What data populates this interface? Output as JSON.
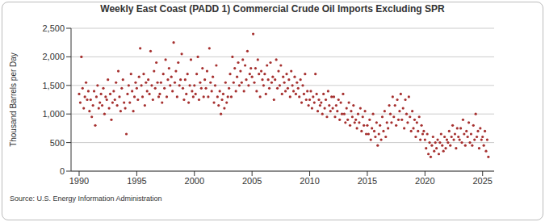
{
  "chart_data": {
    "type": "scatter",
    "title": "Weekly East Coast (PADD 1) Commercial Crude Oil Imports Excluding SPR",
    "y_label": "Thousand Barrels per Day",
    "source": "Source: U.S. Energy Information Administration",
    "color": "#a6302f",
    "marker": "circle",
    "grid": true,
    "xlim": [
      1989.3,
      2026
    ],
    "xticks": [
      1990,
      1995,
      2000,
      2005,
      2010,
      2015,
      2020,
      2025
    ],
    "ylim": [
      0,
      2500
    ],
    "yticks": [
      0,
      500,
      {
        "value": 1000,
        "label": "1,000"
      },
      {
        "value": 1500,
        "label": "1,500"
      },
      {
        "value": 2000,
        "label": "2,000"
      },
      {
        "value": 2500,
        "label": "2,500"
      }
    ],
    "x": [
      1990.0,
      1990.1,
      1990.2,
      1990.3,
      1990.4,
      1990.5,
      1990.6,
      1990.7,
      1990.8,
      1990.9,
      1991.0,
      1991.1,
      1991.2,
      1991.3,
      1991.4,
      1991.5,
      1991.6,
      1991.7,
      1991.8,
      1991.9,
      1992.0,
      1992.1,
      1992.2,
      1992.3,
      1992.4,
      1992.5,
      1992.6,
      1992.7,
      1992.8,
      1992.9,
      1993.0,
      1993.1,
      1993.2,
      1993.3,
      1993.4,
      1993.5,
      1993.6,
      1993.7,
      1993.8,
      1993.9,
      1994.0,
      1994.1,
      1994.2,
      1994.3,
      1994.4,
      1994.5,
      1994.6,
      1994.7,
      1994.8,
      1994.9,
      1995.0,
      1995.1,
      1995.2,
      1995.3,
      1995.4,
      1995.5,
      1995.6,
      1995.7,
      1995.8,
      1995.9,
      1996.0,
      1996.1,
      1996.2,
      1996.3,
      1996.4,
      1996.5,
      1996.6,
      1996.7,
      1996.8,
      1996.9,
      1997.0,
      1997.1,
      1997.2,
      1997.3,
      1997.4,
      1997.5,
      1997.6,
      1997.7,
      1997.8,
      1997.9,
      1998.0,
      1998.1,
      1998.2,
      1998.3,
      1998.4,
      1998.5,
      1998.6,
      1998.7,
      1998.8,
      1998.9,
      1999.0,
      1999.1,
      1999.2,
      1999.3,
      1999.4,
      1999.5,
      1999.6,
      1999.7,
      1999.8,
      1999.9,
      2000.0,
      2000.1,
      2000.2,
      2000.3,
      2000.4,
      2000.5,
      2000.6,
      2000.7,
      2000.8,
      2000.9,
      2001.0,
      2001.1,
      2001.2,
      2001.3,
      2001.4,
      2001.5,
      2001.6,
      2001.7,
      2001.8,
      2001.9,
      2002.0,
      2002.1,
      2002.2,
      2002.3,
      2002.4,
      2002.5,
      2002.6,
      2002.7,
      2002.8,
      2002.9,
      2003.0,
      2003.1,
      2003.2,
      2003.3,
      2003.4,
      2003.5,
      2003.6,
      2003.7,
      2003.8,
      2003.9,
      2004.0,
      2004.1,
      2004.2,
      2004.3,
      2004.4,
      2004.5,
      2004.6,
      2004.7,
      2004.8,
      2004.9,
      2005.0,
      2005.1,
      2005.2,
      2005.3,
      2005.4,
      2005.5,
      2005.6,
      2005.7,
      2005.8,
      2005.9,
      2006.0,
      2006.1,
      2006.2,
      2006.3,
      2006.4,
      2006.5,
      2006.6,
      2006.7,
      2006.8,
      2006.9,
      2007.0,
      2007.1,
      2007.2,
      2007.3,
      2007.4,
      2007.5,
      2007.6,
      2007.7,
      2007.8,
      2007.9,
      2008.0,
      2008.1,
      2008.2,
      2008.3,
      2008.4,
      2008.5,
      2008.6,
      2008.7,
      2008.8,
      2008.9,
      2009.0,
      2009.1,
      2009.2,
      2009.3,
      2009.4,
      2009.5,
      2009.6,
      2009.7,
      2009.8,
      2009.9,
      2010.0,
      2010.1,
      2010.2,
      2010.3,
      2010.4,
      2010.5,
      2010.6,
      2010.7,
      2010.8,
      2010.9,
      2011.0,
      2011.1,
      2011.2,
      2011.3,
      2011.4,
      2011.5,
      2011.6,
      2011.7,
      2011.8,
      2011.9,
      2012.0,
      2012.1,
      2012.2,
      2012.3,
      2012.4,
      2012.5,
      2012.6,
      2012.7,
      2012.8,
      2012.9,
      2013.0,
      2013.1,
      2013.2,
      2013.3,
      2013.4,
      2013.5,
      2013.6,
      2013.7,
      2013.8,
      2013.9,
      2014.0,
      2014.1,
      2014.2,
      2014.3,
      2014.4,
      2014.5,
      2014.6,
      2014.7,
      2014.8,
      2014.9,
      2015.0,
      2015.1,
      2015.2,
      2015.3,
      2015.4,
      2015.5,
      2015.6,
      2015.7,
      2015.8,
      2015.9,
      2016.0,
      2016.1,
      2016.2,
      2016.3,
      2016.4,
      2016.5,
      2016.6,
      2016.7,
      2016.8,
      2016.9,
      2017.0,
      2017.1,
      2017.2,
      2017.3,
      2017.4,
      2017.5,
      2017.6,
      2017.7,
      2017.8,
      2017.9,
      2018.0,
      2018.1,
      2018.2,
      2018.3,
      2018.4,
      2018.5,
      2018.6,
      2018.7,
      2018.8,
      2018.9,
      2019.0,
      2019.1,
      2019.2,
      2019.3,
      2019.4,
      2019.5,
      2019.6,
      2019.7,
      2019.8,
      2019.9,
      2020.0,
      2020.1,
      2020.2,
      2020.3,
      2020.4,
      2020.5,
      2020.6,
      2020.7,
      2020.8,
      2020.9,
      2021.0,
      2021.1,
      2021.2,
      2021.3,
      2021.4,
      2021.5,
      2021.6,
      2021.7,
      2021.8,
      2021.9,
      2022.0,
      2022.1,
      2022.2,
      2022.3,
      2022.4,
      2022.5,
      2022.6,
      2022.7,
      2022.8,
      2022.9,
      2023.0,
      2023.1,
      2023.2,
      2023.3,
      2023.4,
      2023.5,
      2023.6,
      2023.7,
      2023.8,
      2023.9,
      2024.0,
      2024.1,
      2024.2,
      2024.3,
      2024.4,
      2024.5,
      2024.6,
      2024.7,
      2024.8,
      2024.9,
      2025.0,
      2025.1,
      2025.2,
      2025.3,
      2025.4,
      2025.5
    ],
    "values": [
      1350,
      1200,
      2000,
      1450,
      1100,
      1300,
      1550,
      1250,
      1400,
      1050,
      1250,
      950,
      1150,
      1400,
      800,
      1300,
      1500,
      1100,
      1200,
      1350,
      1150,
      1450,
      1000,
      1300,
      1250,
      1600,
      1100,
      1350,
      900,
      1200,
      1400,
      1250,
      1550,
      1150,
      1750,
      1300,
      1050,
      1450,
      1600,
      1200,
      1100,
      650,
      1350,
      1500,
      1200,
      1700,
      1400,
      1050,
      1300,
      1550,
      1450,
      1250,
      1650,
      2150,
      1500,
      1300,
      1700,
      1150,
      1550,
      1400,
      1600,
      1350,
      2100,
      1500,
      1250,
      1750,
      1450,
      1900,
      1550,
      1300,
      1350,
      1550,
      1200,
      1700,
      1450,
      1950,
      1300,
      1600,
      1800,
      1500,
      1650,
      1400,
      2250,
      1550,
      1750,
      1300,
      1900,
      1500,
      1600,
      2050,
      1450,
      1250,
      1600,
      1350,
      1700,
      1200,
      1500,
      1950,
      1400,
      1300,
      1500,
      1350,
      1700,
      2000,
      1250,
      1550,
      1450,
      1800,
      1300,
      1600,
      1450,
      1750,
      1300,
      2150,
      1550,
      1400,
      1650,
      1200,
      1500,
      1850,
      1300,
      1150,
      1400,
      1000,
      1250,
      1350,
      1100,
      1550,
      1200,
      1300,
      1450,
      1700,
      1300,
      2000,
      1550,
      1800,
      1400,
      1650,
      1900,
      1500,
      1750,
      1550,
      1950,
      1400,
      1850,
      1600,
      2100,
      1500,
      1700,
      1800,
      1650,
      2400,
      1550,
      1800,
      1400,
      1950,
      1700,
      1300,
      1750,
      1600,
      1500,
      1700,
      1350,
      1850,
      1600,
      1450,
      1900,
      1550,
      1650,
      1250,
      1600,
      1950,
      1450,
      1750,
      1500,
      1850,
      1350,
      1650,
      1550,
      1400,
      1700,
      1450,
      1600,
      1300,
      1750,
      1500,
      1400,
      1650,
      1350,
      1550,
      1450,
      1300,
      1600,
      1200,
      1500,
      1350,
      1700,
      1250,
      1400,
      1150,
      1250,
      1400,
      1100,
      1300,
      1200,
      1700,
      1350,
      1050,
      1250,
      1150,
      1200,
      1000,
      1350,
      1100,
      1250,
      950,
      1400,
      1150,
      1050,
      1300,
      1100,
      1300,
      950,
      1150,
      1050,
      1250,
      900,
      1200,
      1000,
      1350,
      1000,
      850,
      1100,
      900,
      1200,
      800,
      1050,
      950,
      1150,
      850,
      900,
      750,
      1000,
      850,
      1100,
      700,
      950,
      800,
      1050,
      650,
      800,
      650,
      900,
      550,
      750,
      1000,
      700,
      600,
      850,
      450,
      650,
      800,
      550,
      950,
      700,
      1050,
      600,
      850,
      750,
      1150,
      1000,
      850,
      1300,
      950,
      1150,
      800,
      1250,
      900,
      1050,
      1350,
      900,
      1100,
      750,
      1250,
      1000,
      850,
      1300,
      950,
      700,
      1050,
      750,
      900,
      600,
      850,
      700,
      950,
      550,
      800,
      650,
      700,
      550,
      400,
      650,
      300,
      500,
      250,
      450,
      600,
      350,
      500,
      400,
      550,
      300,
      500,
      650,
      450,
      350,
      600,
      400,
      550,
      500,
      700,
      450,
      600,
      800,
      550,
      650,
      400,
      750,
      600,
      550,
      750,
      500,
      900,
      650,
      450,
      700,
      600,
      850,
      500,
      650,
      450,
      800,
      550,
      1000,
      600,
      700,
      400,
      750,
      550,
      600,
      450,
      700,
      350,
      550,
      250
    ]
  }
}
